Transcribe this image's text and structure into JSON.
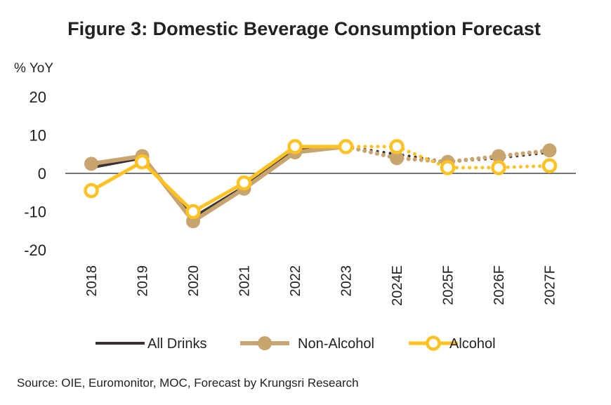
{
  "chart_data": {
    "type": "line",
    "title": "Figure 3: Domestic Beverage Consumption Forecast",
    "ylabel": "% YoY",
    "xlabel": "",
    "ylim": [
      -20,
      20
    ],
    "yticks": [
      20,
      10,
      0,
      -10,
      -20
    ],
    "categories": [
      "2018",
      "2019",
      "2020",
      "2021",
      "2022",
      "2023",
      "2024E",
      "2025F",
      "2026F",
      "2027F"
    ],
    "forecast_start_index": 5,
    "grid": false,
    "legend_position": "bottom",
    "series": [
      {
        "name": "All Drinks",
        "values": [
          1.5,
          4.0,
          -11.5,
          -3.5,
          6.0,
          7.0,
          5.0,
          3.0,
          4.0,
          5.5
        ],
        "color": "#3b3032",
        "marker": "none"
      },
      {
        "name": "Non-Alcohol",
        "values": [
          2.5,
          4.5,
          -12.5,
          -4.0,
          5.5,
          7.0,
          4.0,
          3.0,
          4.5,
          6.0
        ],
        "color": "#c8a46f",
        "marker": "filled-circle"
      },
      {
        "name": "Alcohol",
        "values": [
          -4.5,
          3.0,
          -10.0,
          -2.5,
          7.0,
          7.0,
          7.0,
          1.5,
          1.5,
          2.0
        ],
        "color": "#ffc222",
        "marker": "open-circle"
      }
    ],
    "source_prefix": "Source: OIE, Euromonitor, MOC, ",
    "source_suffix": "Forecast by Krungsri Research"
  }
}
